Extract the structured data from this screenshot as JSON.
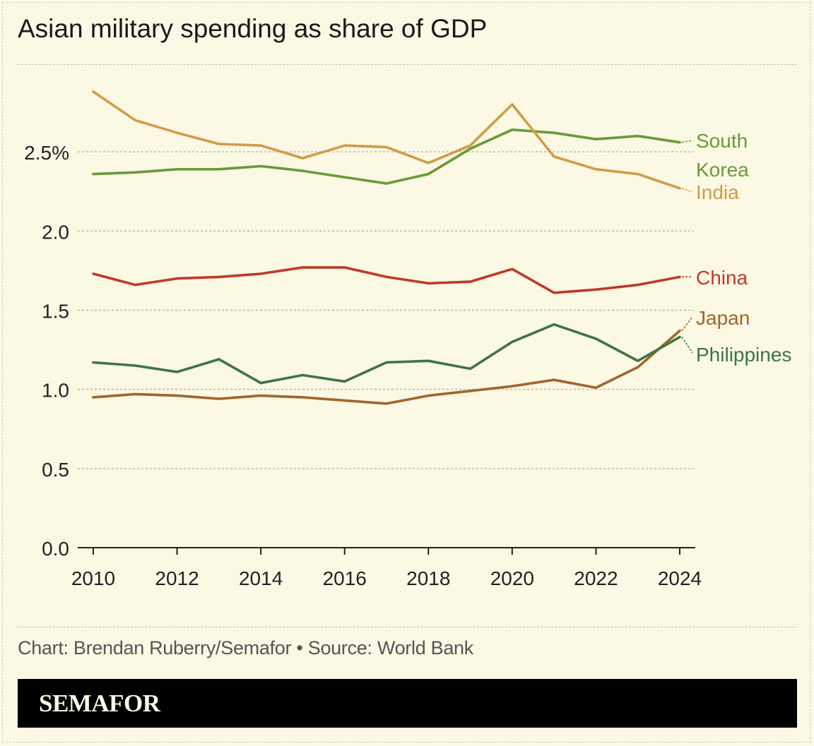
{
  "title": "Asian military spending as share of GDP",
  "credit": "Chart: Brendan Ruberry/Semafor • Source: World Bank",
  "logo": "SEMAFOR",
  "colors": {
    "background": "#fbf8e4",
    "south_korea": "#6a9a3a",
    "india": "#d19c47",
    "china": "#c0392b",
    "japan": "#a2652e",
    "philippines": "#3f7446"
  },
  "chart_data": {
    "type": "line",
    "x": [
      2010,
      2011,
      2012,
      2013,
      2014,
      2015,
      2016,
      2017,
      2018,
      2019,
      2020,
      2021,
      2022,
      2023,
      2024
    ],
    "xticks": [
      "2010",
      "2012",
      "2014",
      "2016",
      "2018",
      "2020",
      "2022",
      "2024"
    ],
    "yticks": [
      "0.0",
      "0.5",
      "1.0",
      "1.5",
      "2.0",
      "2.5%"
    ],
    "ylim": [
      0,
      3
    ],
    "xlim": [
      2010,
      2024
    ],
    "grid": true,
    "legend": "direct labels at line ends",
    "series": [
      {
        "name": "South Korea",
        "label_lines": [
          "South",
          "Korea"
        ],
        "color_key": "south_korea",
        "values": [
          2.36,
          2.37,
          2.39,
          2.39,
          2.41,
          2.38,
          2.34,
          2.3,
          2.36,
          2.52,
          2.64,
          2.62,
          2.58,
          2.6,
          2.56
        ]
      },
      {
        "name": "India",
        "label_lines": [
          "India"
        ],
        "color_key": "india",
        "values": [
          2.88,
          2.7,
          2.62,
          2.55,
          2.54,
          2.46,
          2.54,
          2.53,
          2.43,
          2.54,
          2.8,
          2.47,
          2.39,
          2.36,
          2.27
        ]
      },
      {
        "name": "China",
        "label_lines": [
          "China"
        ],
        "color_key": "china",
        "values": [
          1.73,
          1.66,
          1.7,
          1.71,
          1.73,
          1.77,
          1.77,
          1.71,
          1.67,
          1.68,
          1.76,
          1.61,
          1.63,
          1.66,
          1.71
        ]
      },
      {
        "name": "Japan",
        "label_lines": [
          "Japan"
        ],
        "color_key": "japan",
        "values": [
          0.95,
          0.97,
          0.96,
          0.94,
          0.96,
          0.95,
          0.93,
          0.91,
          0.96,
          0.99,
          1.02,
          1.06,
          1.01,
          1.14,
          1.37
        ]
      },
      {
        "name": "Philippines",
        "label_lines": [
          "Philippines"
        ],
        "color_key": "philippines",
        "values": [
          1.17,
          1.15,
          1.11,
          1.19,
          1.04,
          1.09,
          1.05,
          1.17,
          1.18,
          1.13,
          1.3,
          1.41,
          1.32,
          1.18,
          1.33
        ]
      }
    ]
  }
}
